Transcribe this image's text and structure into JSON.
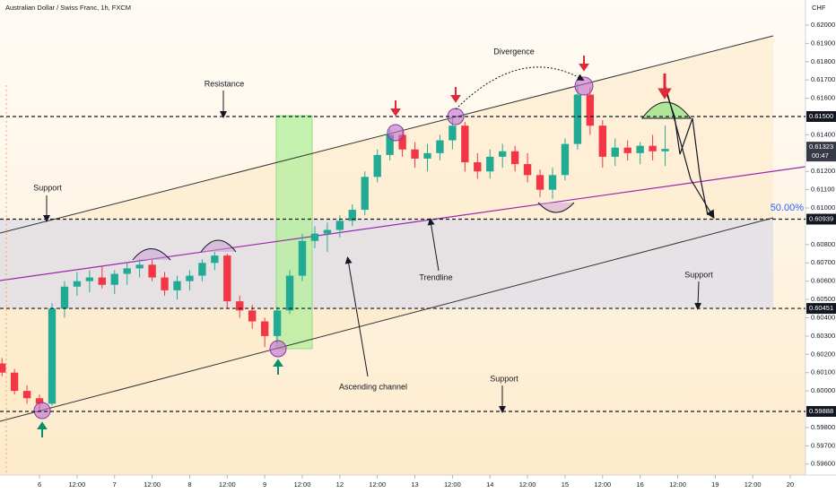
{
  "chart_data": {
    "type": "candlestick",
    "title": "Australian Dollar / Swiss Franc, 1h, FXCM",
    "y_axis_title": "CHF",
    "up_color": "#22ab94",
    "down_color": "#f23645",
    "xlim": [
      -12.63,
      244.0
    ],
    "ylim": [
      0.5954,
      0.62137
    ],
    "xticks": [
      {
        "value": 0,
        "label": "6"
      },
      {
        "value": 12,
        "label": "12:00"
      },
      {
        "value": 24,
        "label": "7"
      },
      {
        "value": 36,
        "label": "12:00"
      },
      {
        "value": 48,
        "label": "8"
      },
      {
        "value": 60,
        "label": "12:00"
      },
      {
        "value": 72,
        "label": "9"
      },
      {
        "value": 84,
        "label": "12:00"
      },
      {
        "value": 96,
        "label": "12"
      },
      {
        "value": 108,
        "label": "12:00"
      },
      {
        "value": 120,
        "label": "13"
      },
      {
        "value": 132,
        "label": "12:00"
      },
      {
        "value": 144,
        "label": "14"
      },
      {
        "value": 156,
        "label": "12:00"
      },
      {
        "value": 168,
        "label": "15"
      },
      {
        "value": 180,
        "label": "12:00"
      },
      {
        "value": 192,
        "label": "16"
      },
      {
        "value": 204,
        "label": "12:00"
      },
      {
        "value": 216,
        "label": "19"
      },
      {
        "value": 228,
        "label": "12:00"
      },
      {
        "value": 240,
        "label": "20"
      }
    ],
    "yticks": [
      {
        "value": 0.62,
        "label": "0.62000"
      },
      {
        "value": 0.619,
        "label": "0.61900"
      },
      {
        "value": 0.618,
        "label": "0.61800"
      },
      {
        "value": 0.617,
        "label": "0.61700"
      },
      {
        "value": 0.616,
        "label": "0.61600"
      },
      {
        "value": 0.614,
        "label": "0.61400"
      },
      {
        "value": 0.612,
        "label": "0.61200"
      },
      {
        "value": 0.611,
        "label": "0.61100"
      },
      {
        "value": 0.61,
        "label": "0.61000"
      },
      {
        "value": 0.608,
        "label": "0.60800"
      },
      {
        "value": 0.607,
        "label": "0.60700"
      },
      {
        "value": 0.606,
        "label": "0.60600"
      },
      {
        "value": 0.605,
        "label": "0.60500"
      },
      {
        "value": 0.604,
        "label": "0.60400"
      },
      {
        "value": 0.603,
        "label": "0.60300"
      },
      {
        "value": 0.602,
        "label": "0.60200"
      },
      {
        "value": 0.601,
        "label": "0.60100"
      },
      {
        "value": 0.6,
        "label": "0.60000"
      },
      {
        "value": 0.598,
        "label": "0.59800"
      },
      {
        "value": 0.597,
        "label": "0.59700"
      },
      {
        "value": 0.596,
        "label": "0.59600"
      }
    ],
    "levels": [
      {
        "value": 0.615,
        "label": "0.61500"
      },
      {
        "value": 0.60939,
        "label": "0.60939"
      },
      {
        "value": 0.60451,
        "label": "0.60451"
      },
      {
        "value": 0.59888,
        "label": "0.59888"
      }
    ],
    "last_price": {
      "value": 0.61323,
      "label": "0.61323"
    },
    "countdown": "00:47",
    "x": [
      -12,
      -8,
      -4,
      0,
      4,
      8,
      12,
      16,
      20,
      24,
      28,
      32,
      36,
      40,
      44,
      48,
      52,
      56,
      60,
      64,
      68,
      72,
      76,
      80,
      84,
      88,
      92,
      96,
      100,
      104,
      108,
      112,
      116,
      120,
      124,
      128,
      132,
      136,
      140,
      144,
      148,
      152,
      156,
      160,
      164,
      168,
      172,
      176,
      180,
      184,
      188,
      192,
      196,
      200
    ],
    "ohlc": [
      [
        0.6015,
        0.6018,
        0.6008,
        0.601
      ],
      [
        0.601,
        0.6012,
        0.5998,
        0.6
      ],
      [
        0.6,
        0.6003,
        0.5993,
        0.5996
      ],
      [
        0.5996,
        0.5998,
        0.5989,
        0.5993
      ],
      [
        0.5993,
        0.6048,
        0.5992,
        0.6045
      ],
      [
        0.6045,
        0.606,
        0.604,
        0.6057
      ],
      [
        0.6057,
        0.6065,
        0.6052,
        0.606
      ],
      [
        0.606,
        0.6066,
        0.6054,
        0.6062
      ],
      [
        0.6062,
        0.6068,
        0.6056,
        0.6058
      ],
      [
        0.6058,
        0.6066,
        0.6053,
        0.6064
      ],
      [
        0.6064,
        0.607,
        0.6058,
        0.6067
      ],
      [
        0.6067,
        0.6072,
        0.6062,
        0.6069
      ],
      [
        0.6069,
        0.6072,
        0.606,
        0.6062
      ],
      [
        0.6062,
        0.6065,
        0.6052,
        0.6055
      ],
      [
        0.6055,
        0.6063,
        0.605,
        0.606
      ],
      [
        0.606,
        0.6066,
        0.6055,
        0.6063
      ],
      [
        0.6063,
        0.6072,
        0.606,
        0.607
      ],
      [
        0.607,
        0.6076,
        0.6066,
        0.6074
      ],
      [
        0.6074,
        0.6075,
        0.6045,
        0.6049
      ],
      [
        0.6049,
        0.6052,
        0.604,
        0.6044
      ],
      [
        0.6044,
        0.6047,
        0.6034,
        0.6038
      ],
      [
        0.6038,
        0.604,
        0.6024,
        0.603
      ],
      [
        0.603,
        0.6046,
        0.6026,
        0.6044
      ],
      [
        0.6044,
        0.6066,
        0.6042,
        0.6063
      ],
      [
        0.6063,
        0.6086,
        0.606,
        0.6082
      ],
      [
        0.6082,
        0.609,
        0.6078,
        0.6086
      ],
      [
        0.6086,
        0.6092,
        0.6076,
        0.6088
      ],
      [
        0.6088,
        0.6096,
        0.6084,
        0.6093
      ],
      [
        0.6093,
        0.6102,
        0.609,
        0.6099
      ],
      [
        0.6099,
        0.612,
        0.6096,
        0.6117
      ],
      [
        0.6117,
        0.6132,
        0.6114,
        0.6129
      ],
      [
        0.6129,
        0.6143,
        0.6126,
        0.614
      ],
      [
        0.614,
        0.6144,
        0.6128,
        0.6132
      ],
      [
        0.6132,
        0.6136,
        0.6122,
        0.6127
      ],
      [
        0.6127,
        0.6135,
        0.612,
        0.613
      ],
      [
        0.613,
        0.614,
        0.6126,
        0.6137
      ],
      [
        0.6137,
        0.615,
        0.6132,
        0.6145
      ],
      [
        0.6145,
        0.6147,
        0.612,
        0.6125
      ],
      [
        0.6125,
        0.613,
        0.6116,
        0.612
      ],
      [
        0.612,
        0.6132,
        0.6116,
        0.6128
      ],
      [
        0.6128,
        0.6135,
        0.6122,
        0.6131
      ],
      [
        0.6131,
        0.6134,
        0.612,
        0.6124
      ],
      [
        0.6124,
        0.613,
        0.6114,
        0.6118
      ],
      [
        0.6118,
        0.6121,
        0.6106,
        0.611
      ],
      [
        0.611,
        0.6122,
        0.6105,
        0.6118
      ],
      [
        0.6118,
        0.6138,
        0.6115,
        0.6135
      ],
      [
        0.6135,
        0.6168,
        0.6132,
        0.6162
      ],
      [
        0.6162,
        0.6166,
        0.614,
        0.6145
      ],
      [
        0.6145,
        0.6148,
        0.6122,
        0.6128
      ],
      [
        0.6128,
        0.6138,
        0.6123,
        0.6133
      ],
      [
        0.6133,
        0.6137,
        0.6126,
        0.613
      ],
      [
        0.613,
        0.6136,
        0.6124,
        0.6134
      ],
      [
        0.6134,
        0.614,
        0.6126,
        0.6131
      ],
      [
        0.6131,
        0.6145,
        0.6123,
        0.61323
      ]
    ],
    "annotations": {
      "resistance": "Resistance",
      "support_left": "Support",
      "support_right": "Support",
      "support_bottom": "Support",
      "divergence": "Divergence",
      "trendline": "Trendline",
      "channel": "Ascending channel",
      "fib": "50.00%"
    }
  }
}
